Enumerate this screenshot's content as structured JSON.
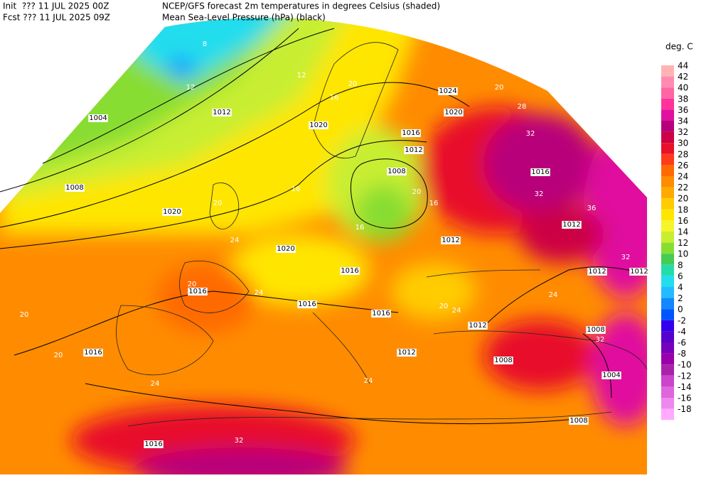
{
  "header": {
    "init": "Init  ??? 11 JUL 2025 00Z",
    "fcst": "Fcst ??? 11 JUL 2025 09Z",
    "title": "NCEP/GFS forecast 2m temperatures in degrees Celsius (shaded)",
    "subtitle": "Mean Sea-Level Pressure (hPa) (black)"
  },
  "legend": {
    "title": "deg. C",
    "entries": [
      {
        "label": "44",
        "color": "#ffb3b3"
      },
      {
        "label": "42",
        "color": "#ff8cb0"
      },
      {
        "label": "40",
        "color": "#ff66a3"
      },
      {
        "label": "38",
        "color": "#ff3399"
      },
      {
        "label": "36",
        "color": "#e0119f"
      },
      {
        "label": "34",
        "color": "#b8007a"
      },
      {
        "label": "32",
        "color": "#cc0044"
      },
      {
        "label": "30",
        "color": "#e8102a"
      },
      {
        "label": "28",
        "color": "#ff3a1a"
      },
      {
        "label": "26",
        "color": "#ff6a00"
      },
      {
        "label": "24",
        "color": "#ff8c00"
      },
      {
        "label": "22",
        "color": "#ffaa00"
      },
      {
        "label": "20",
        "color": "#ffcc00"
      },
      {
        "label": "18",
        "color": "#ffe600"
      },
      {
        "label": "16",
        "color": "#f5f52a"
      },
      {
        "label": "14",
        "color": "#c8ee30"
      },
      {
        "label": "12",
        "color": "#88dd33"
      },
      {
        "label": "10",
        "color": "#44cc55"
      },
      {
        "label": "8",
        "color": "#22ddaa"
      },
      {
        "label": "6",
        "color": "#22ddee"
      },
      {
        "label": "4",
        "color": "#22bbff"
      },
      {
        "label": "2",
        "color": "#1188ff"
      },
      {
        "label": "0",
        "color": "#0055ff"
      },
      {
        "label": "-2",
        "color": "#3300ee"
      },
      {
        "label": "-4",
        "color": "#5500cc"
      },
      {
        "label": "-6",
        "color": "#7700bb"
      },
      {
        "label": "-8",
        "color": "#9900aa"
      },
      {
        "label": "-10",
        "color": "#aa22aa"
      },
      {
        "label": "-12",
        "color": "#cc44cc"
      },
      {
        "label": "-14",
        "color": "#dd66dd"
      },
      {
        "label": "-16",
        "color": "#ee88ee"
      },
      {
        "label": "-18",
        "color": "#ffaaff"
      }
    ]
  },
  "map": {
    "pressure_labels": [
      "1004",
      "1012",
      "1008",
      "1020",
      "1020",
      "1024",
      "1020",
      "1016",
      "1012",
      "1008",
      "1016",
      "1012",
      "1012",
      "1020",
      "1016",
      "1016",
      "1016",
      "1012",
      "1016",
      "1016",
      "1012",
      "1008",
      "1008",
      "1004",
      "1008",
      "1016",
      "1012",
      "1012"
    ],
    "temperature_labels": [
      "8",
      "12",
      "12",
      "20",
      "16",
      "20",
      "16",
      "32",
      "28",
      "32",
      "36",
      "32",
      "20",
      "16",
      "16",
      "20",
      "24",
      "24",
      "24",
      "24",
      "20",
      "32",
      "20",
      "24",
      "20",
      "24",
      "32",
      "20"
    ]
  }
}
